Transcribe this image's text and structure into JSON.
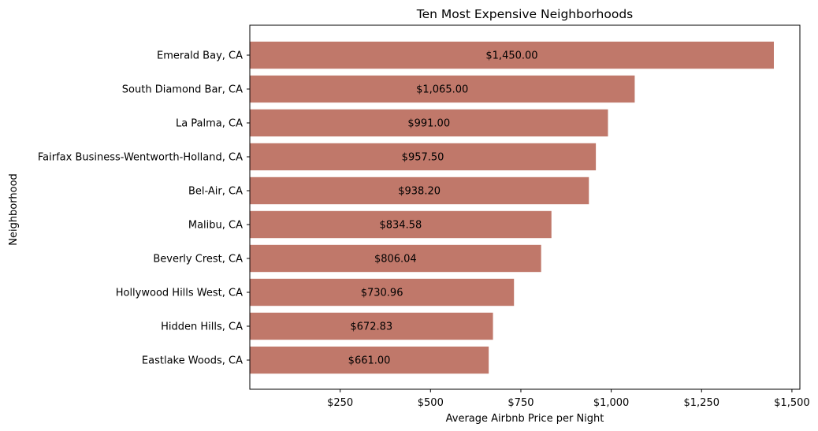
{
  "chart_data": {
    "type": "bar",
    "orientation": "horizontal",
    "title": "Ten Most Expensive Neighborhoods",
    "xlabel": "Average Airbnb Price per Night",
    "ylabel": "Neighborhood",
    "xlim": [
      0,
      1522
    ],
    "xticks": [
      250,
      500,
      750,
      1000,
      1250,
      1500
    ],
    "xtick_labels": [
      "$250",
      "$500",
      "$750",
      "$1,000",
      "$1,250",
      "$1,500"
    ],
    "bar_color": "#c0786a",
    "grid": false,
    "categories": [
      "Emerald Bay, CA",
      "South Diamond Bar, CA",
      "La Palma, CA",
      "Fairfax Business-Wentworth-Holland, CA",
      "Bel-Air, CA",
      "Malibu, CA",
      "Beverly Crest, CA",
      "Hollywood Hills West, CA",
      "Hidden Hills, CA",
      "Eastlake Woods, CA"
    ],
    "values": [
      1450.0,
      1065.0,
      991.0,
      957.5,
      938.2,
      834.58,
      806.04,
      730.96,
      672.83,
      661.0
    ],
    "data_labels": [
      "$1,450.00",
      "$1,065.00",
      "$991.00",
      "$957.50",
      "$938.20",
      "$834.58",
      "$806.04",
      "$730.96",
      "$672.83",
      "$661.00"
    ]
  }
}
